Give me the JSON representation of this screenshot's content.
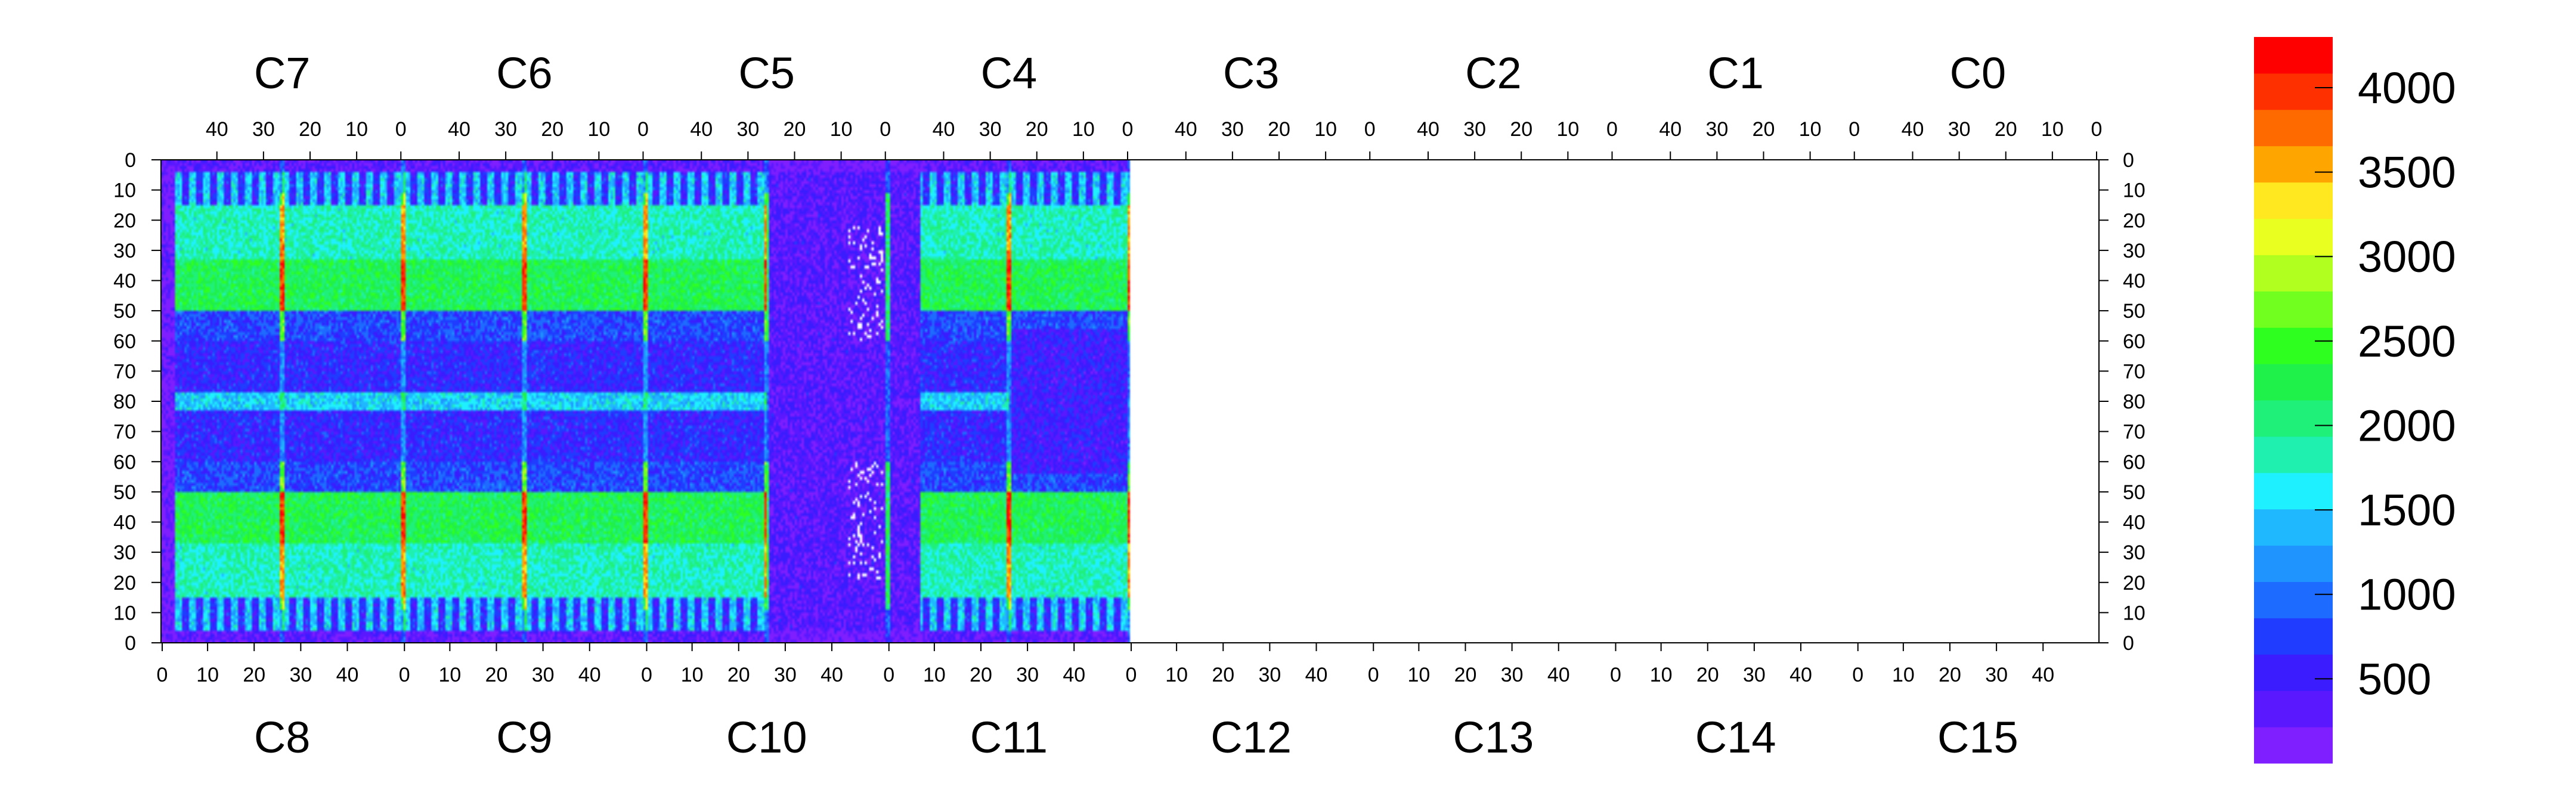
{
  "chart_data": {
    "type": "heatmap",
    "title": "",
    "top_chip_labels": [
      "C7",
      "C6",
      "C5",
      "C4",
      "C3",
      "C2",
      "C1",
      "C0"
    ],
    "bottom_chip_labels": [
      "C8",
      "C9",
      "C10",
      "C11",
      "C12",
      "C13",
      "C14",
      "C15"
    ],
    "top_x_tick_labels": [
      "40",
      "30",
      "20",
      "10",
      "0"
    ],
    "bottom_x_tick_labels": [
      "0",
      "10",
      "20",
      "30",
      "40"
    ],
    "y_tick_labels": [
      "0",
      "10",
      "20",
      "30",
      "40",
      "50",
      "60",
      "70",
      "80",
      "70",
      "60",
      "50",
      "40",
      "30",
      "20",
      "10",
      "0"
    ],
    "columns_per_chip": 52,
    "rows_per_half": 80,
    "zlim": [
      0,
      4300
    ],
    "colorbar_ticks": [
      500,
      1000,
      1500,
      2000,
      2500,
      3000,
      3500,
      4000
    ],
    "colorbar_tick_labels": [
      "500",
      "1000",
      "1500",
      "2000",
      "2500",
      "3000",
      "3500",
      "4000"
    ],
    "palette": [
      "#7f1fff",
      "#5a18ff",
      "#3a1cff",
      "#1f3cff",
      "#1e6bff",
      "#1f94ff",
      "#1fb8ff",
      "#1ff0ff",
      "#1ff0b0",
      "#1ff07a",
      "#1ff04a",
      "#2fff1f",
      "#70ff1f",
      "#b0ff1f",
      "#e8ff1f",
      "#ffe81f",
      "#ffa500",
      "#ff6a00",
      "#ff3000",
      "#ff0000"
    ],
    "grid": false,
    "legend": "colorbar-right"
  }
}
